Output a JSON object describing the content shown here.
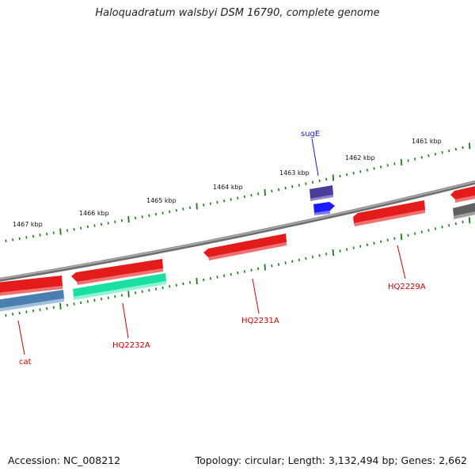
{
  "title": "Haloquadratum walsbyi DSM 16790, complete genome",
  "accession": "Accession: NC_008212",
  "summary": "Topology: circular; Length: 3,132,494 bp; Genes: 2,662",
  "scale_labels": [
    "1467 kbp",
    "1466 kbp",
    "1465 kbp",
    "1464 kbp",
    "1463 kbp",
    "1462 kbp",
    "1461 kbp"
  ],
  "gene_labels": {
    "sugE": "sugE",
    "cat": "cat",
    "HQ2232A": "HQ2232A",
    "HQ2231A": "HQ2231A",
    "HQ2229A": "HQ2229A"
  },
  "colors": {
    "backbone": "#8a8a8a",
    "tick": "#1a7a1a",
    "red_gene": "#e31b1b",
    "red_label": "#cc0000",
    "blue_label": "#1a1acc",
    "steel_gene": "#4a7fb0",
    "teal_gene": "#18e0a0",
    "purple_gene": "#4a3d99",
    "blue_gene": "#1a1aff",
    "gray_gene": "#606060"
  }
}
